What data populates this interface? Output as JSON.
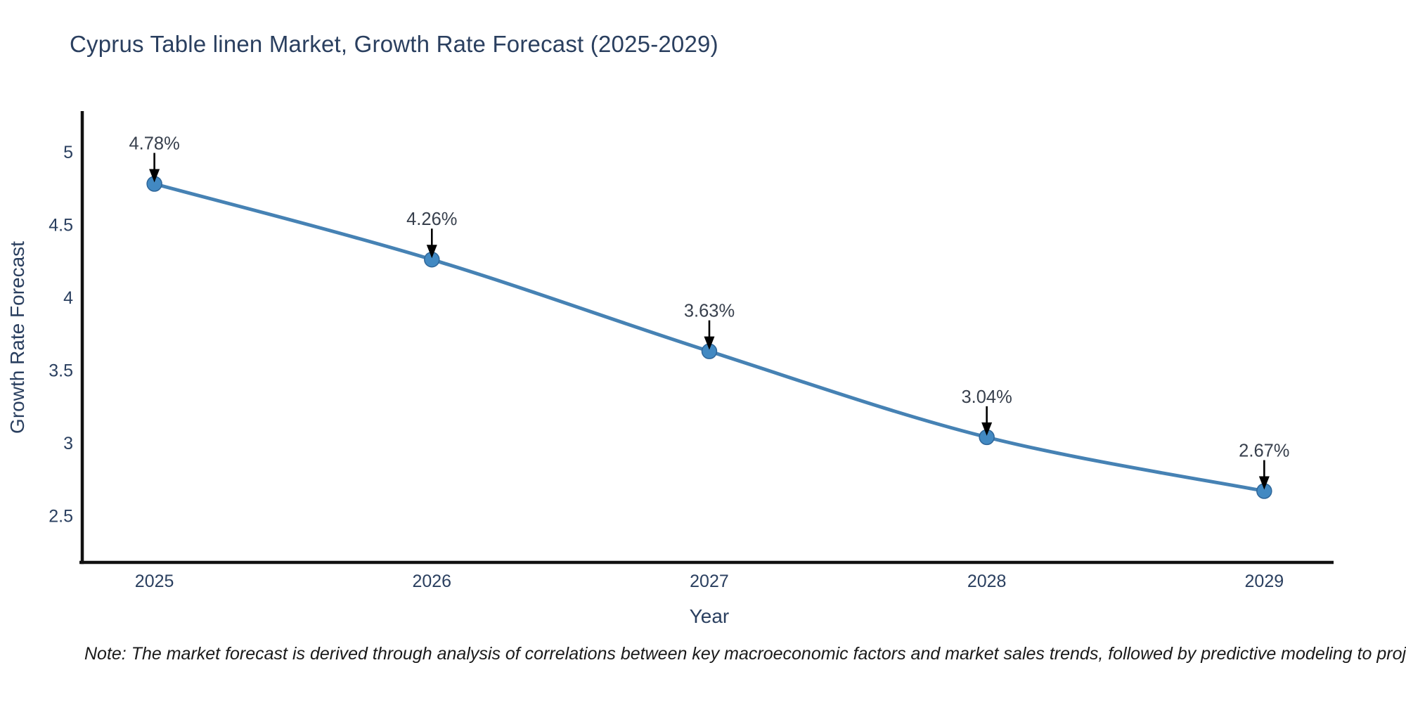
{
  "figure": {
    "title": "Cyprus Table linen Market, Growth Rate Forecast (2025-2029)",
    "note": "Note: The market forecast is derived through analysis of correlations between key macroeconomic factors and market sales trends, followed by predictive modeling to project future sales"
  },
  "colors": {
    "title_text": "#2a3f5f",
    "axis_text": "#2a3f5f",
    "tick_text": "#2a3f5f",
    "axis_line": "#111111",
    "series_line": "#4682b4",
    "marker_fill": "#4289c2",
    "marker_edge": "#2f6699",
    "annotation_text": "#38404d",
    "arrow": "#000000",
    "note_text": "#1a1a1a",
    "background": "#ffffff"
  },
  "chart_data": {
    "type": "line",
    "title": "Cyprus Table linen Market, Growth Rate Forecast (2025-2029)",
    "xlabel": "Year",
    "ylabel": "Growth Rate Forecast",
    "x": [
      2025,
      2026,
      2027,
      2028,
      2029
    ],
    "x_tick_labels": [
      "2025",
      "2026",
      "2027",
      "2028",
      "2029"
    ],
    "series": [
      {
        "name": "Growth Rate Forecast",
        "values": [
          4.78,
          4.26,
          3.63,
          3.04,
          2.67
        ]
      }
    ],
    "point_labels": [
      "4.78%",
      "4.26%",
      "3.63%",
      "3.04%",
      "2.67%"
    ],
    "y_ticks": [
      2.5,
      3,
      3.5,
      4,
      4.5,
      5
    ],
    "y_tick_labels": [
      "2.5",
      "3",
      "3.5",
      "4",
      "4.5",
      "5"
    ],
    "ylim": [
      2.18,
      5.27
    ],
    "xlim": [
      2024.74,
      2029.25
    ],
    "grid": false,
    "legend": "none",
    "line_shape": "spline",
    "markers": true,
    "annotation_style": "percent value label with downward black arrow above each data point"
  }
}
